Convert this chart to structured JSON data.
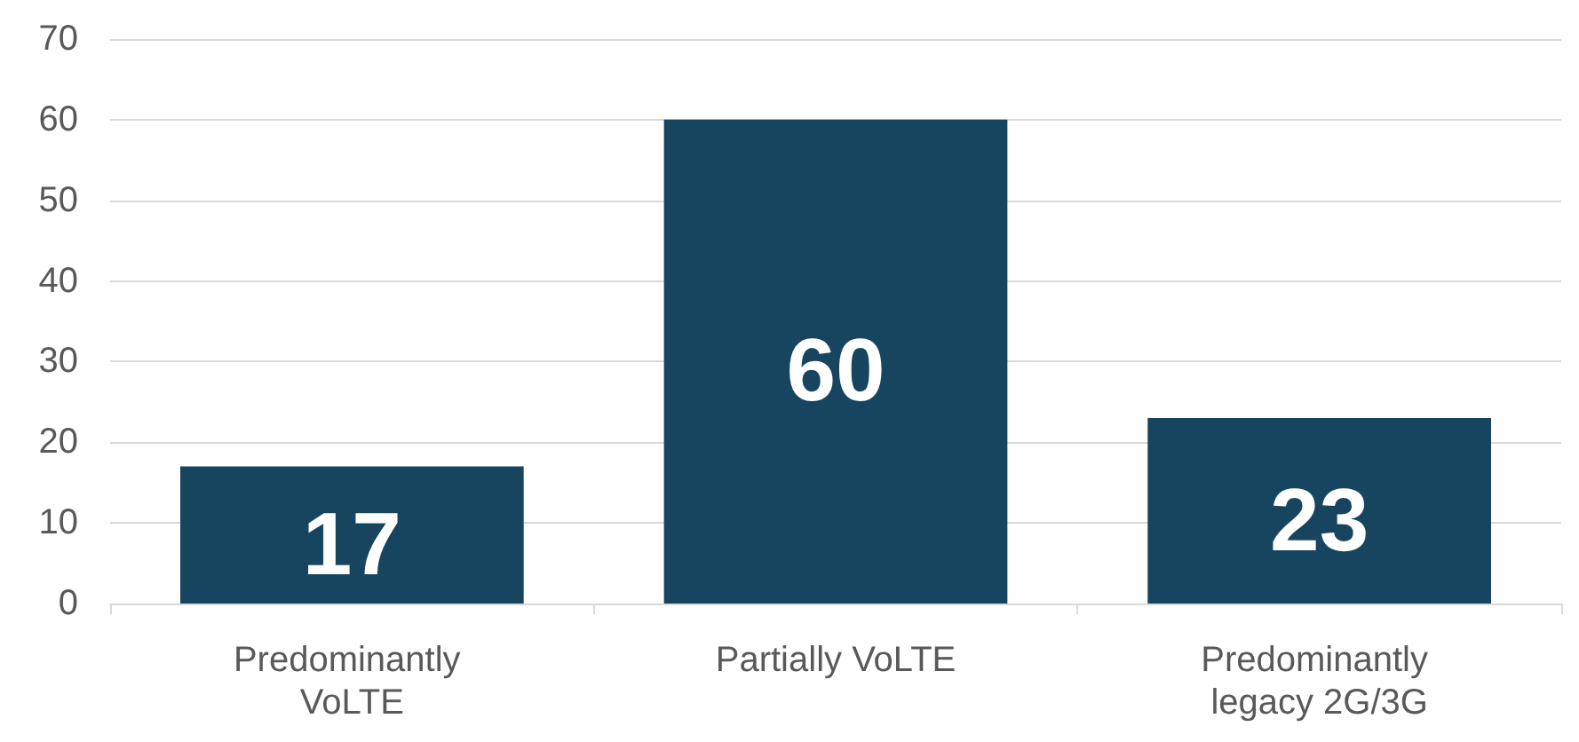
{
  "chart_data": {
    "type": "bar",
    "categories": [
      "Predominantly VoLTE",
      "Partially VoLTE",
      "Predominantly legacy 2G/3G"
    ],
    "values": [
      17,
      60,
      23
    ],
    "color": "#17445f",
    "ylim": [
      0,
      70
    ],
    "yticks": [
      0,
      10,
      20,
      30,
      40,
      50,
      60,
      70
    ],
    "grid": "y",
    "data_labels": true
  }
}
